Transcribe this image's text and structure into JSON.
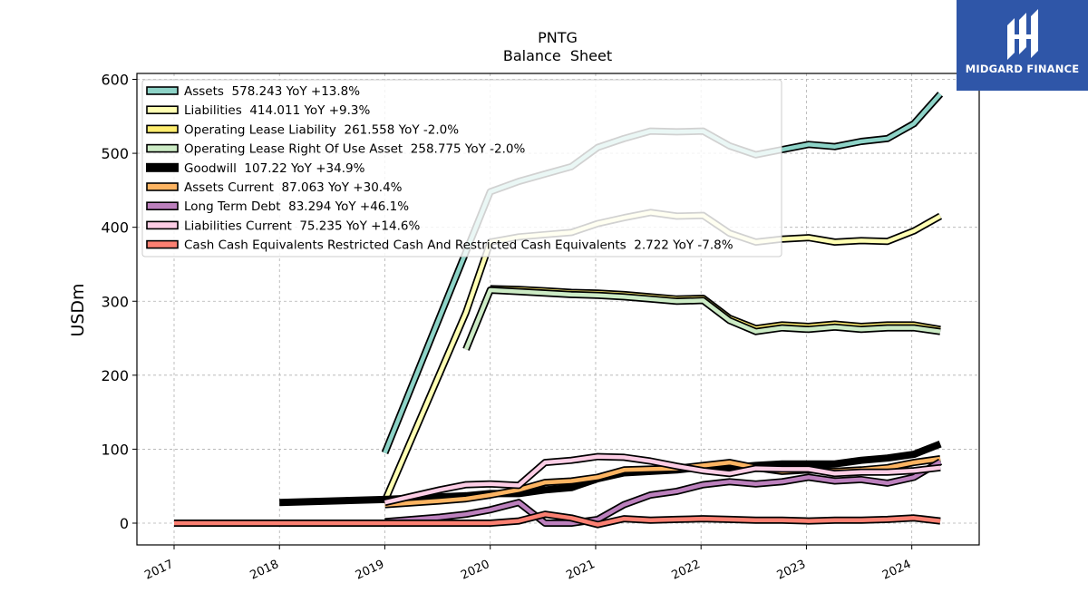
{
  "chart_data": {
    "type": "line",
    "title": "PNTG",
    "subtitle": "Balance  Sheet",
    "ylabel": "USDm",
    "xlabel": "",
    "xlim": [
      2016.8,
      2024.6
    ],
    "ylim": [
      -30,
      610
    ],
    "yticks": [
      0,
      100,
      200,
      300,
      400,
      500,
      600
    ],
    "xticks": [
      "2017",
      "2018",
      "2019",
      "2020",
      "2021",
      "2022",
      "2023",
      "2024"
    ],
    "grid": true,
    "legend_position": "top-left",
    "series": [
      {
        "name": "Assets  578.243 YoY +13.8%",
        "color": "#8dd3c7",
        "width": 4.5,
        "points": [
          [
            2018.98,
            95
          ],
          [
            2019.98,
            448
          ],
          [
            2020.25,
            462
          ],
          [
            2020.5,
            472
          ],
          [
            2020.75,
            482
          ],
          [
            2021.0,
            508
          ],
          [
            2021.25,
            520
          ],
          [
            2021.5,
            530
          ],
          [
            2021.75,
            529
          ],
          [
            2022.0,
            530
          ],
          [
            2022.25,
            510
          ],
          [
            2022.5,
            498
          ],
          [
            2022.75,
            505
          ],
          [
            2023.0,
            512
          ],
          [
            2023.25,
            509
          ],
          [
            2023.5,
            516
          ],
          [
            2023.75,
            520
          ],
          [
            2024.0,
            540
          ],
          [
            2024.25,
            580
          ]
        ]
      },
      {
        "name": "Liabilities  414.011 YoY +9.3%",
        "color": "#ffffb3",
        "width": 4.5,
        "points": [
          [
            2018.98,
            30
          ],
          [
            2019.75,
            285
          ],
          [
            2019.98,
            380
          ],
          [
            2020.25,
            387
          ],
          [
            2020.5,
            390
          ],
          [
            2020.75,
            393
          ],
          [
            2021.0,
            405
          ],
          [
            2021.25,
            413
          ],
          [
            2021.5,
            420
          ],
          [
            2021.75,
            415
          ],
          [
            2022.0,
            416
          ],
          [
            2022.25,
            392
          ],
          [
            2022.5,
            380
          ],
          [
            2022.75,
            384
          ],
          [
            2023.0,
            386
          ],
          [
            2023.25,
            380
          ],
          [
            2023.5,
            382
          ],
          [
            2023.75,
            381
          ],
          [
            2024.0,
            395
          ],
          [
            2024.25,
            415
          ]
        ]
      },
      {
        "name": "Operating Lease Liability  261.558 YoY -2.0%",
        "color": "#ffed6f",
        "width": 4.5,
        "points": [
          [
            2019.98,
            317
          ],
          [
            2020.25,
            316
          ],
          [
            2020.5,
            314
          ],
          [
            2020.75,
            312
          ],
          [
            2021.0,
            311
          ],
          [
            2021.25,
            309
          ],
          [
            2021.5,
            306
          ],
          [
            2021.75,
            303
          ],
          [
            2022.0,
            304
          ],
          [
            2022.25,
            277
          ],
          [
            2022.5,
            263
          ],
          [
            2022.75,
            268
          ],
          [
            2023.0,
            266
          ],
          [
            2023.25,
            269
          ],
          [
            2023.5,
            266
          ],
          [
            2023.75,
            268
          ],
          [
            2024.0,
            268
          ],
          [
            2024.25,
            262
          ]
        ]
      },
      {
        "name": "Operating Lease Right Of Use Asset  258.775 YoY -2.0%",
        "color": "#ccebc5",
        "width": 4.5,
        "points": [
          [
            2019.75,
            235
          ],
          [
            2019.98,
            315
          ],
          [
            2020.25,
            313
          ],
          [
            2020.5,
            311
          ],
          [
            2020.75,
            309
          ],
          [
            2021.0,
            308
          ],
          [
            2021.25,
            306
          ],
          [
            2021.5,
            303
          ],
          [
            2021.75,
            300
          ],
          [
            2022.0,
            301
          ],
          [
            2022.25,
            274
          ],
          [
            2022.5,
            259
          ],
          [
            2022.75,
            264
          ],
          [
            2023.0,
            262
          ],
          [
            2023.25,
            265
          ],
          [
            2023.5,
            262
          ],
          [
            2023.75,
            264
          ],
          [
            2024.0,
            264
          ],
          [
            2024.25,
            259
          ]
        ]
      },
      {
        "name": "Goodwill  107.22 YoY +34.9%",
        "color": "#000000",
        "width": 8,
        "points": [
          [
            2017.98,
            28
          ],
          [
            2018.98,
            32
          ],
          [
            2019.75,
            37
          ],
          [
            2019.98,
            40
          ],
          [
            2020.25,
            40
          ],
          [
            2020.5,
            45
          ],
          [
            2020.75,
            48
          ],
          [
            2021.0,
            60
          ],
          [
            2021.25,
            68
          ],
          [
            2021.5,
            70
          ],
          [
            2021.75,
            72
          ],
          [
            2022.0,
            76
          ],
          [
            2022.25,
            75
          ],
          [
            2022.5,
            78
          ],
          [
            2022.75,
            80
          ],
          [
            2023.0,
            80
          ],
          [
            2023.25,
            80
          ],
          [
            2023.5,
            85
          ],
          [
            2023.75,
            88
          ],
          [
            2024.0,
            93
          ],
          [
            2024.25,
            107
          ]
        ]
      },
      {
        "name": "Assets Current  87.063 YoY +30.4%",
        "color": "#fdb462",
        "width": 4.5,
        "points": [
          [
            2018.98,
            25
          ],
          [
            2019.5,
            30
          ],
          [
            2019.75,
            33
          ],
          [
            2019.98,
            38
          ],
          [
            2020.25,
            45
          ],
          [
            2020.5,
            55
          ],
          [
            2020.75,
            57
          ],
          [
            2021.0,
            62
          ],
          [
            2021.25,
            72
          ],
          [
            2021.5,
            73
          ],
          [
            2021.75,
            74
          ],
          [
            2022.0,
            78
          ],
          [
            2022.25,
            82
          ],
          [
            2022.5,
            75
          ],
          [
            2022.75,
            70
          ],
          [
            2023.0,
            72
          ],
          [
            2023.25,
            70
          ],
          [
            2023.5,
            72
          ],
          [
            2023.75,
            75
          ],
          [
            2024.0,
            82
          ],
          [
            2024.25,
            87
          ]
        ]
      },
      {
        "name": "Long Term Debt  83.294 YoY +46.1%",
        "color": "#bc80bd",
        "width": 4.5,
        "points": [
          [
            2018.98,
            2
          ],
          [
            2019.5,
            8
          ],
          [
            2019.75,
            12
          ],
          [
            2019.98,
            18
          ],
          [
            2020.25,
            28
          ],
          [
            2020.5,
            0
          ],
          [
            2020.75,
            0
          ],
          [
            2021.0,
            5
          ],
          [
            2021.25,
            25
          ],
          [
            2021.5,
            38
          ],
          [
            2021.75,
            43
          ],
          [
            2022.0,
            52
          ],
          [
            2022.25,
            56
          ],
          [
            2022.5,
            53
          ],
          [
            2022.75,
            56
          ],
          [
            2023.0,
            62
          ],
          [
            2023.25,
            57
          ],
          [
            2023.5,
            59
          ],
          [
            2023.75,
            54
          ],
          [
            2024.0,
            62
          ],
          [
            2024.25,
            83
          ]
        ]
      },
      {
        "name": "Liabilities Current  75.235 YoY +14.6%",
        "color": "#fccde5",
        "width": 4.5,
        "points": [
          [
            2018.98,
            28
          ],
          [
            2019.5,
            45
          ],
          [
            2019.75,
            52
          ],
          [
            2019.98,
            53
          ],
          [
            2020.25,
            51
          ],
          [
            2020.5,
            82
          ],
          [
            2020.75,
            85
          ],
          [
            2021.0,
            90
          ],
          [
            2021.25,
            89
          ],
          [
            2021.5,
            84
          ],
          [
            2021.75,
            77
          ],
          [
            2022.0,
            71
          ],
          [
            2022.25,
            67
          ],
          [
            2022.5,
            74
          ],
          [
            2022.75,
            73
          ],
          [
            2023.0,
            73
          ],
          [
            2023.25,
            67
          ],
          [
            2023.5,
            69
          ],
          [
            2023.75,
            69
          ],
          [
            2024.0,
            71
          ],
          [
            2024.25,
            75
          ]
        ]
      },
      {
        "name": "Cash Cash Equivalents Restricted Cash And Restricted Cash Equivalents  2.722 YoY -7.8%",
        "color": "#fb8072",
        "width": 4.5,
        "points": [
          [
            2016.98,
            0
          ],
          [
            2017.98,
            0
          ],
          [
            2018.98,
            0
          ],
          [
            2019.5,
            0
          ],
          [
            2019.98,
            0
          ],
          [
            2020.25,
            3
          ],
          [
            2020.5,
            12
          ],
          [
            2020.75,
            7
          ],
          [
            2021.0,
            -2
          ],
          [
            2021.25,
            6
          ],
          [
            2021.5,
            4
          ],
          [
            2021.75,
            5
          ],
          [
            2022.0,
            6
          ],
          [
            2022.25,
            5
          ],
          [
            2022.5,
            4
          ],
          [
            2022.75,
            4
          ],
          [
            2023.0,
            3
          ],
          [
            2023.25,
            4
          ],
          [
            2023.5,
            4
          ],
          [
            2023.75,
            5
          ],
          [
            2024.0,
            7
          ],
          [
            2024.25,
            3
          ]
        ]
      }
    ]
  },
  "watermark": {
    "brand_text": "MIDGARD FINANCE",
    "background": "#2f56a8"
  }
}
